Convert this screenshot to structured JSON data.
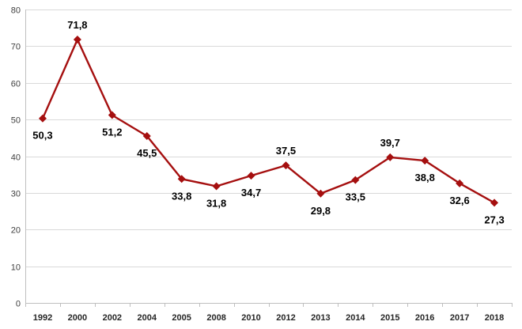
{
  "chart_data": {
    "type": "line",
    "categories": [
      "1992",
      "2000",
      "2002",
      "2004",
      "2005",
      "2008",
      "2010",
      "2012",
      "2013",
      "2014",
      "2015",
      "2016",
      "2017",
      "2018"
    ],
    "series": [
      {
        "values": [
          50.3,
          71.8,
          51.2,
          45.5,
          33.8,
          31.8,
          34.7,
          37.5,
          29.8,
          33.5,
          39.7,
          38.8,
          32.6,
          27.3
        ],
        "data_labels": [
          "50,3",
          "71,8",
          "51,2",
          "45,5",
          "33,8",
          "31,8",
          "34,7",
          "37,5",
          "29,8",
          "33,5",
          "39,7",
          "38,8",
          "32,6",
          "27,3"
        ],
        "color": "#a50f0f",
        "marker": "diamond"
      }
    ],
    "yticks": [
      "0",
      "10",
      "20",
      "30",
      "40",
      "50",
      "60",
      "70",
      "80"
    ],
    "ylim": [
      0,
      80
    ],
    "grid": true,
    "legend": "none"
  }
}
